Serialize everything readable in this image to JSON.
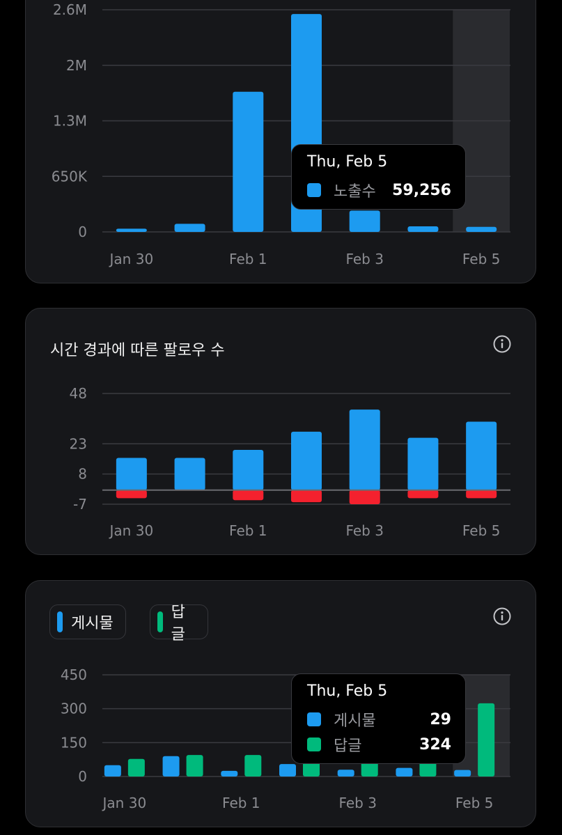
{
  "colors": {
    "blue": "#1d9bf0",
    "red": "#f4212e",
    "green": "#00ba7c",
    "highlight": "#2a2b2f"
  },
  "charts": {
    "impressions": {
      "tooltip": {
        "date": "Thu, Feb 5",
        "items": [
          {
            "label": "노출수",
            "value": "59,256",
            "color": "#1d9bf0"
          }
        ]
      }
    },
    "followers": {
      "title": "시간 경과에 따른 팔로우 수",
      "info_icon": "info-icon"
    },
    "posts_replies": {
      "legend": [
        {
          "label": "게시물",
          "color": "#1d9bf0"
        },
        {
          "label": "답글",
          "color": "#00ba7c"
        }
      ],
      "info_icon": "info-icon",
      "tooltip": {
        "date": "Thu, Feb 5",
        "items": [
          {
            "label": "게시물",
            "value": "29",
            "color": "#1d9bf0"
          },
          {
            "label": "답글",
            "value": "324",
            "color": "#00ba7c"
          }
        ]
      }
    }
  },
  "chart_data": [
    {
      "type": "bar",
      "categories": [
        "Jan 30",
        "Jan 31",
        "Feb 1",
        "Feb 2",
        "Feb 3",
        "Feb 4",
        "Feb 5"
      ],
      "x_tick_labels": [
        "Jan 30",
        "Feb 1",
        "Feb 3",
        "Feb 5"
      ],
      "series": [
        {
          "name": "노출수",
          "values": [
            38000,
            95000,
            1640000,
            2550000,
            250000,
            65000,
            59256
          ]
        }
      ],
      "yticks": [
        0,
        650000,
        1300000,
        1950000,
        2600000
      ],
      "ytick_labels": [
        "0",
        "650K",
        "1.3M",
        "2M",
        "2.6M"
      ],
      "ylim": [
        0,
        2600000
      ],
      "highlighted_category": "Feb 5",
      "grid": true
    },
    {
      "type": "bar",
      "title": "시간 경과에 따른 팔로우 수",
      "categories": [
        "Jan 30",
        "Jan 31",
        "Feb 1",
        "Feb 2",
        "Feb 3",
        "Feb 4",
        "Feb 5"
      ],
      "x_tick_labels": [
        "Jan 30",
        "Feb 1",
        "Feb 3",
        "Feb 5"
      ],
      "series": [
        {
          "values": [
            16,
            16,
            20,
            29,
            40,
            26,
            34
          ]
        },
        {
          "values": [
            -4,
            0,
            -5,
            -6,
            -7,
            -4,
            -4
          ]
        }
      ],
      "yticks": [
        -7,
        8,
        23,
        48
      ],
      "ytick_labels": [
        "-7",
        "8",
        "23",
        "48"
      ],
      "ylim": [
        -7,
        48
      ],
      "grid": true
    },
    {
      "type": "bar",
      "categories": [
        "Jan 30",
        "Jan 31",
        "Feb 1",
        "Feb 2",
        "Feb 3",
        "Feb 4",
        "Feb 5"
      ],
      "x_tick_labels": [
        "Jan 30",
        "Feb 1",
        "Feb 3",
        "Feb 5"
      ],
      "series": [
        {
          "name": "게시물",
          "values": [
            50,
            90,
            25,
            55,
            30,
            38,
            29
          ]
        },
        {
          "name": "답글",
          "values": [
            78,
            95,
            95,
            80,
            75,
            70,
            324
          ]
        }
      ],
      "yticks": [
        0,
        150,
        300,
        450
      ],
      "ytick_labels": [
        "0",
        "150",
        "300",
        "450"
      ],
      "ylim": [
        0,
        450
      ],
      "highlighted_category": "Feb 5",
      "legend_position": "top-left",
      "grid": true
    }
  ]
}
